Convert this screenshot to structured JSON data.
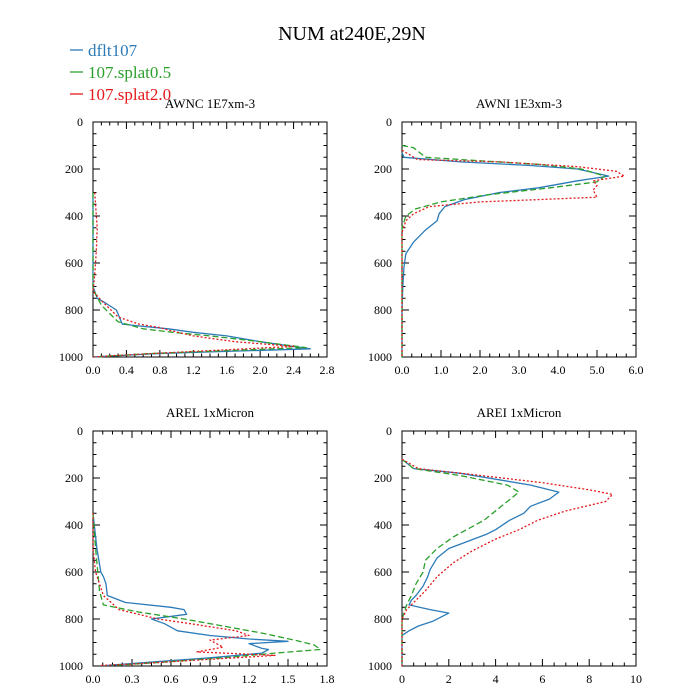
{
  "figure": {
    "title": "NUM at240E,29N"
  },
  "colors": {
    "dflt107": "#2b7bb9",
    "splat05": "#2ca02c",
    "splat20": "#e31a1c"
  },
  "legend": [
    {
      "label": "dflt107",
      "color": "#2b7bb9",
      "dash": "solid"
    },
    {
      "label": "107.splat0.5",
      "color": "#2ca02c",
      "dash": "dashed"
    },
    {
      "label": "107.splat2.0",
      "color": "#e31a1c",
      "dash": "dotted"
    }
  ],
  "chart_data": [
    {
      "type": "line",
      "title": "AWNC  1E7xm-3",
      "xlim": [
        0,
        2.8
      ],
      "ylim": [
        0,
        1000
      ],
      "y_inverted": true,
      "xticks": [
        0.0,
        0.4,
        0.8,
        1.2,
        1.6,
        2.0,
        2.4,
        2.8
      ],
      "xticklabels": [
        "0.0",
        "0.4",
        "0.8",
        "1.2",
        "1.6",
        "2.0",
        "2.4",
        "2.8"
      ],
      "yticks": [
        0,
        200,
        400,
        600,
        800,
        1000
      ],
      "yticklabels": [
        "0",
        "200",
        "400",
        "600",
        "800",
        "1000"
      ],
      "series": [
        {
          "name": "dflt107",
          "points": [
            [
              0,
              300
            ],
            [
              0,
              700
            ],
            [
              0.05,
              750
            ],
            [
              0.15,
              770
            ],
            [
              0.28,
              800
            ],
            [
              0.35,
              860
            ],
            [
              0.6,
              870
            ],
            [
              0.9,
              880
            ],
            [
              1.2,
              895
            ],
            [
              1.6,
              910
            ],
            [
              2.0,
              935
            ],
            [
              2.3,
              950
            ],
            [
              2.6,
              965
            ],
            [
              0.8,
              985
            ],
            [
              0.25,
              995
            ],
            [
              0,
              1000
            ]
          ]
        },
        {
          "name": "107.splat0.5",
          "points": [
            [
              0,
              300
            ],
            [
              0,
              710
            ],
            [
              0.1,
              780
            ],
            [
              0.3,
              850
            ],
            [
              0.6,
              880
            ],
            [
              0.95,
              895
            ],
            [
              1.4,
              910
            ],
            [
              2.0,
              935
            ],
            [
              2.55,
              960
            ],
            [
              0.7,
              985
            ],
            [
              0,
              1000
            ]
          ]
        },
        {
          "name": "107.splat2.0",
          "points": [
            [
              0.02,
              300
            ],
            [
              0.05,
              450
            ],
            [
              0.04,
              550
            ],
            [
              0.02,
              650
            ],
            [
              0,
              720
            ],
            [
              0.1,
              760
            ],
            [
              0.3,
              830
            ],
            [
              0.55,
              860
            ],
            [
              0.8,
              875
            ],
            [
              0.9,
              885
            ],
            [
              1.2,
              910
            ],
            [
              1.7,
              935
            ],
            [
              2.4,
              955
            ],
            [
              1.0,
              980
            ],
            [
              0.3,
              993
            ],
            [
              0,
              1000
            ]
          ]
        }
      ]
    },
    {
      "type": "line",
      "title": "AWNI  1E3xm-3",
      "xlim": [
        0,
        6.0
      ],
      "ylim": [
        0,
        1000
      ],
      "y_inverted": true,
      "xticks": [
        0,
        1,
        2,
        3,
        4,
        5,
        6
      ],
      "xticklabels": [
        "0.0",
        "1.0",
        "2.0",
        "3.0",
        "4.0",
        "5.0",
        "6.0"
      ],
      "yticks": [
        0,
        200,
        400,
        600,
        800,
        1000
      ],
      "yticklabels": [
        "0",
        "200",
        "400",
        "600",
        "800",
        "1000"
      ],
      "series": [
        {
          "name": "dflt107",
          "points": [
            [
              0,
              130
            ],
            [
              0.05,
              150
            ],
            [
              1.5,
              170
            ],
            [
              3.3,
              185
            ],
            [
              4.5,
              200
            ],
            [
              5.3,
              230
            ],
            [
              4.5,
              250
            ],
            [
              3.5,
              280
            ],
            [
              2.5,
              300
            ],
            [
              1.6,
              330
            ],
            [
              1.1,
              360
            ],
            [
              0.95,
              390
            ],
            [
              0.9,
              420
            ],
            [
              0.6,
              460
            ],
            [
              0.3,
              510
            ],
            [
              0.1,
              560
            ],
            [
              0.05,
              620
            ],
            [
              0.02,
              700
            ],
            [
              0,
              800
            ],
            [
              0,
              1000
            ]
          ]
        },
        {
          "name": "107.splat0.5",
          "points": [
            [
              0,
              100
            ],
            [
              0.3,
              110
            ],
            [
              0.6,
              150
            ],
            [
              2.0,
              165
            ],
            [
              3.5,
              180
            ],
            [
              4.6,
              200
            ],
            [
              5.2,
              230
            ],
            [
              5.0,
              255
            ],
            [
              3.8,
              280
            ],
            [
              2.2,
              310
            ],
            [
              1.0,
              340
            ],
            [
              0.35,
              370
            ],
            [
              0.1,
              400
            ],
            [
              0,
              450
            ],
            [
              0,
              1000
            ]
          ]
        },
        {
          "name": "107.splat2.0",
          "points": [
            [
              0,
              120
            ],
            [
              0.4,
              160
            ],
            [
              2.5,
              170
            ],
            [
              4.5,
              190
            ],
            [
              5.5,
              210
            ],
            [
              5.7,
              230
            ],
            [
              4.9,
              250
            ],
            [
              5.0,
              270
            ],
            [
              4.9,
              290
            ],
            [
              5.0,
              320
            ],
            [
              3.5,
              330
            ],
            [
              2.0,
              340
            ],
            [
              0.7,
              360
            ],
            [
              0.3,
              390
            ],
            [
              0.1,
              420
            ],
            [
              0,
              470
            ],
            [
              0,
              1000
            ]
          ]
        }
      ]
    },
    {
      "type": "line",
      "title": "AREL  1xMicron",
      "xlim": [
        0,
        1.8
      ],
      "ylim": [
        0,
        1000
      ],
      "y_inverted": true,
      "xticks": [
        0,
        0.3,
        0.6,
        0.9,
        1.2,
        1.5,
        1.8
      ],
      "xticklabels": [
        "0.0",
        "0.3",
        "0.6",
        "0.9",
        "1.2",
        "1.5",
        "1.8"
      ],
      "yticks": [
        0,
        200,
        400,
        600,
        800,
        1000
      ],
      "yticklabels": [
        "0",
        "200",
        "400",
        "600",
        "800",
        "1000"
      ],
      "series": [
        {
          "name": "dflt107",
          "points": [
            [
              0,
              350
            ],
            [
              0.03,
              500
            ],
            [
              0.06,
              600
            ],
            [
              0.08,
              620
            ],
            [
              0.1,
              650
            ],
            [
              0.11,
              700
            ],
            [
              0.25,
              730
            ],
            [
              0.6,
              750
            ],
            [
              0.7,
              760
            ],
            [
              0.72,
              780
            ],
            [
              0.45,
              800
            ],
            [
              0.55,
              820
            ],
            [
              0.65,
              850
            ],
            [
              0.9,
              870
            ],
            [
              1.2,
              885
            ],
            [
              1.5,
              895
            ],
            [
              1.2,
              905
            ],
            [
              1.3,
              925
            ],
            [
              1.35,
              930
            ],
            [
              1.3,
              945
            ],
            [
              0.9,
              965
            ],
            [
              0.4,
              985
            ],
            [
              0.1,
              998
            ]
          ]
        },
        {
          "name": "107.splat0.5",
          "points": [
            [
              0,
              350
            ],
            [
              0.02,
              500
            ],
            [
              0.04,
              620
            ],
            [
              0.05,
              680
            ],
            [
              0.08,
              740
            ],
            [
              0.35,
              770
            ],
            [
              0.7,
              800
            ],
            [
              1.0,
              830
            ],
            [
              1.3,
              860
            ],
            [
              1.55,
              890
            ],
            [
              1.7,
              910
            ],
            [
              1.75,
              930
            ],
            [
              1.4,
              945
            ],
            [
              1.0,
              965
            ],
            [
              0.5,
              985
            ],
            [
              0.15,
              998
            ]
          ]
        },
        {
          "name": "107.splat2.0",
          "points": [
            [
              0,
              350
            ],
            [
              0,
              500
            ],
            [
              0.02,
              600
            ],
            [
              0.05,
              650
            ],
            [
              0.08,
              700
            ],
            [
              0.2,
              760
            ],
            [
              0.5,
              800
            ],
            [
              0.75,
              820
            ],
            [
              1.1,
              850
            ],
            [
              1.2,
              870
            ],
            [
              0.9,
              890
            ],
            [
              1.0,
              920
            ],
            [
              0.8,
              940
            ],
            [
              1.4,
              955
            ],
            [
              0.8,
              975
            ],
            [
              0.3,
              992
            ],
            [
              0.05,
              998
            ]
          ]
        }
      ]
    },
    {
      "type": "line",
      "title": "AREI  1xMicron",
      "xlim": [
        0,
        10
      ],
      "ylim": [
        0,
        1000
      ],
      "y_inverted": true,
      "xticks": [
        0,
        2,
        4,
        6,
        8,
        10
      ],
      "xticklabels": [
        "0",
        "2",
        "4",
        "6",
        "8",
        "10"
      ],
      "yticks": [
        0,
        200,
        400,
        600,
        800,
        1000
      ],
      "yticklabels": [
        "0",
        "200",
        "400",
        "600",
        "800",
        "1000"
      ],
      "series": [
        {
          "name": "dflt107",
          "points": [
            [
              0,
              120
            ],
            [
              0.5,
              160
            ],
            [
              2.5,
              180
            ],
            [
              5.5,
              230
            ],
            [
              6.7,
              260
            ],
            [
              6.3,
              290
            ],
            [
              5.5,
              320
            ],
            [
              5.2,
              350
            ],
            [
              4.6,
              380
            ],
            [
              4.0,
              420
            ],
            [
              3.6,
              440
            ],
            [
              2.0,
              500
            ],
            [
              1.5,
              540
            ],
            [
              1.2,
              590
            ],
            [
              1.1,
              620
            ],
            [
              0.9,
              660
            ],
            [
              0.6,
              700
            ],
            [
              0.4,
              720
            ],
            [
              0.3,
              740
            ],
            [
              1.2,
              760
            ],
            [
              2.0,
              775
            ],
            [
              1.3,
              810
            ],
            [
              0.7,
              830
            ],
            [
              0.3,
              850
            ],
            [
              0,
              870
            ],
            [
              0,
              1000
            ]
          ]
        },
        {
          "name": "107.splat0.5",
          "points": [
            [
              0,
              120
            ],
            [
              0.5,
              160
            ],
            [
              2.5,
              190
            ],
            [
              4.5,
              230
            ],
            [
              5.0,
              260
            ],
            [
              4.5,
              300
            ],
            [
              3.5,
              380
            ],
            [
              2.2,
              450
            ],
            [
              1.5,
              500
            ],
            [
              1.0,
              550
            ],
            [
              0.9,
              600
            ],
            [
              0.6,
              650
            ],
            [
              0.4,
              700
            ],
            [
              0.2,
              740
            ],
            [
              0,
              800
            ],
            [
              0,
              1000
            ]
          ]
        },
        {
          "name": "107.splat2.0",
          "points": [
            [
              0,
              120
            ],
            [
              0.7,
              160
            ],
            [
              3.0,
              185
            ],
            [
              6.0,
              220
            ],
            [
              8.0,
              250
            ],
            [
              9.0,
              270
            ],
            [
              8.7,
              300
            ],
            [
              7.0,
              340
            ],
            [
              5.8,
              380
            ],
            [
              5.0,
              420
            ],
            [
              4.0,
              460
            ],
            [
              3.0,
              510
            ],
            [
              2.2,
              560
            ],
            [
              1.5,
              620
            ],
            [
              1.0,
              680
            ],
            [
              0.5,
              730
            ],
            [
              0.2,
              760
            ],
            [
              0,
              800
            ],
            [
              0,
              1000
            ]
          ]
        }
      ]
    }
  ]
}
